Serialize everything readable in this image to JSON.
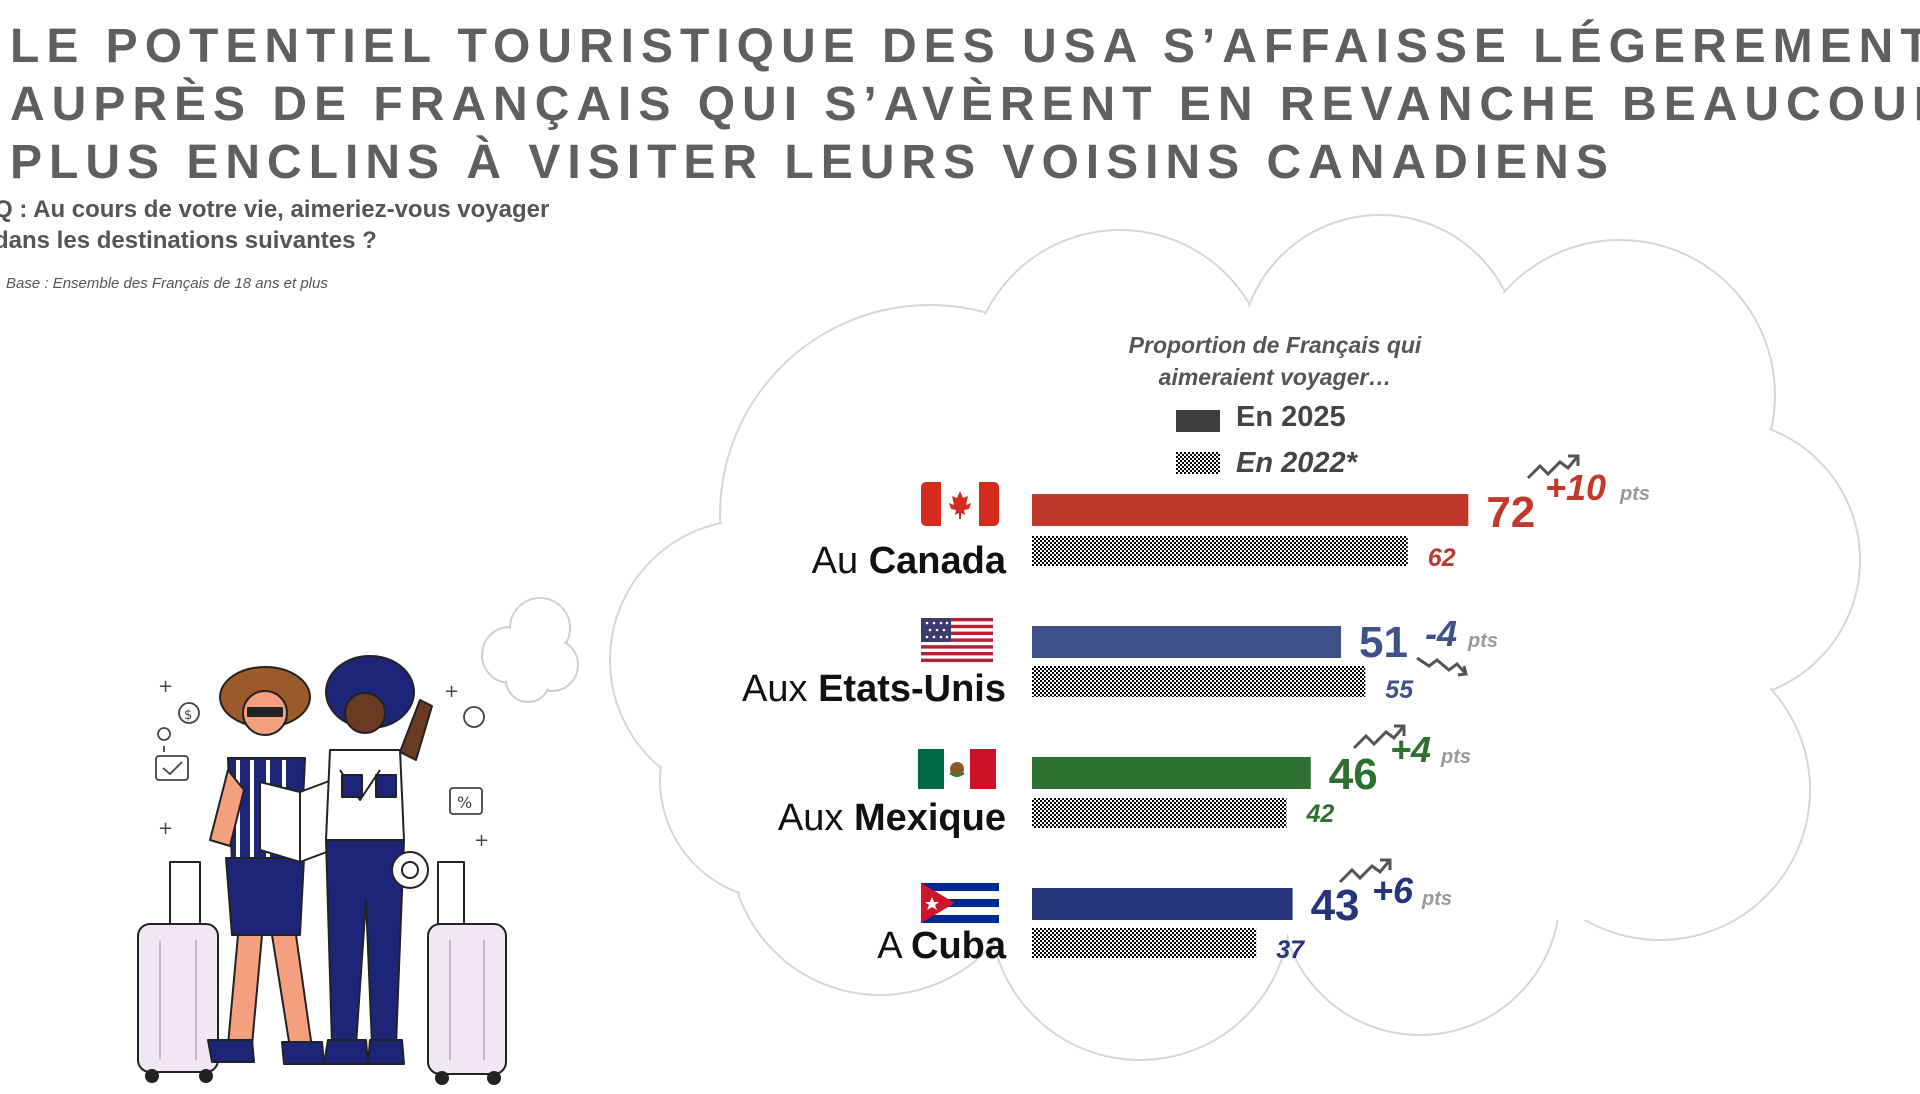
{
  "title_lines": [
    "LE POTENTIEL TOURISTIQUE DES USA S’AFFAISSE LÉGEREMENT",
    "AUPRÈS DE FRANÇAIS QUI S’AVÈRENT EN REVANCHE BEAUCOUP",
    "PLUS ENCLINS À VISITER LEURS VOISINS CANADIENS"
  ],
  "question_lines": [
    "Q : Au cours de votre vie, aimeriez-vous voyager",
    "dans les destinations suivantes ?"
  ],
  "base": "Base : Ensemble des Français de 18 ans et plus",
  "chart_data": {
    "type": "bar",
    "orientation": "horizontal",
    "header_lines": [
      "Proportion de Français qui",
      "aimeraient voyager…"
    ],
    "legend": [
      {
        "label": "En 2025",
        "style": "solid",
        "color": "#3d3d3d"
      },
      {
        "label": "En 2022*",
        "style": "hatched",
        "color": "#3d3d3d"
      }
    ],
    "value_unit": "%",
    "ylim": [
      0,
      100
    ],
    "categories": [
      {
        "prefix": "Au ",
        "name": "Canada",
        "flag": "canada-flag",
        "v2025": 72,
        "v2022": 62,
        "delta": "+10",
        "delta_unit": "pts",
        "trend": "up",
        "color": "#c0392b"
      },
      {
        "prefix": "Aux ",
        "name": "Etats-Unis",
        "flag": "usa-flag",
        "v2025": 51,
        "v2022": 55,
        "delta": "-4",
        "delta_unit": "pts",
        "trend": "down",
        "color": "#3f5189"
      },
      {
        "prefix": "Aux ",
        "name": "Mexique",
        "flag": "mexico-flag",
        "v2025": 46,
        "v2022": 42,
        "delta": "+4",
        "delta_unit": "pts",
        "trend": "up",
        "color": "#2e7031"
      },
      {
        "prefix": "A ",
        "name": "Cuba",
        "flag": "cuba-flag",
        "v2025": 43,
        "v2022": 37,
        "delta": "+6",
        "delta_unit": "pts",
        "trend": "up",
        "color": "#24357a"
      }
    ]
  },
  "illustration": {
    "name": "travelers-illustration-icon",
    "colors": {
      "navy": "#1d2578",
      "skin_light": "#f4a07e",
      "skin_dark": "#6b3a22",
      "hat": "#9a5a2a",
      "suitcase": "#f1e6f4",
      "outline": "#222222"
    }
  }
}
